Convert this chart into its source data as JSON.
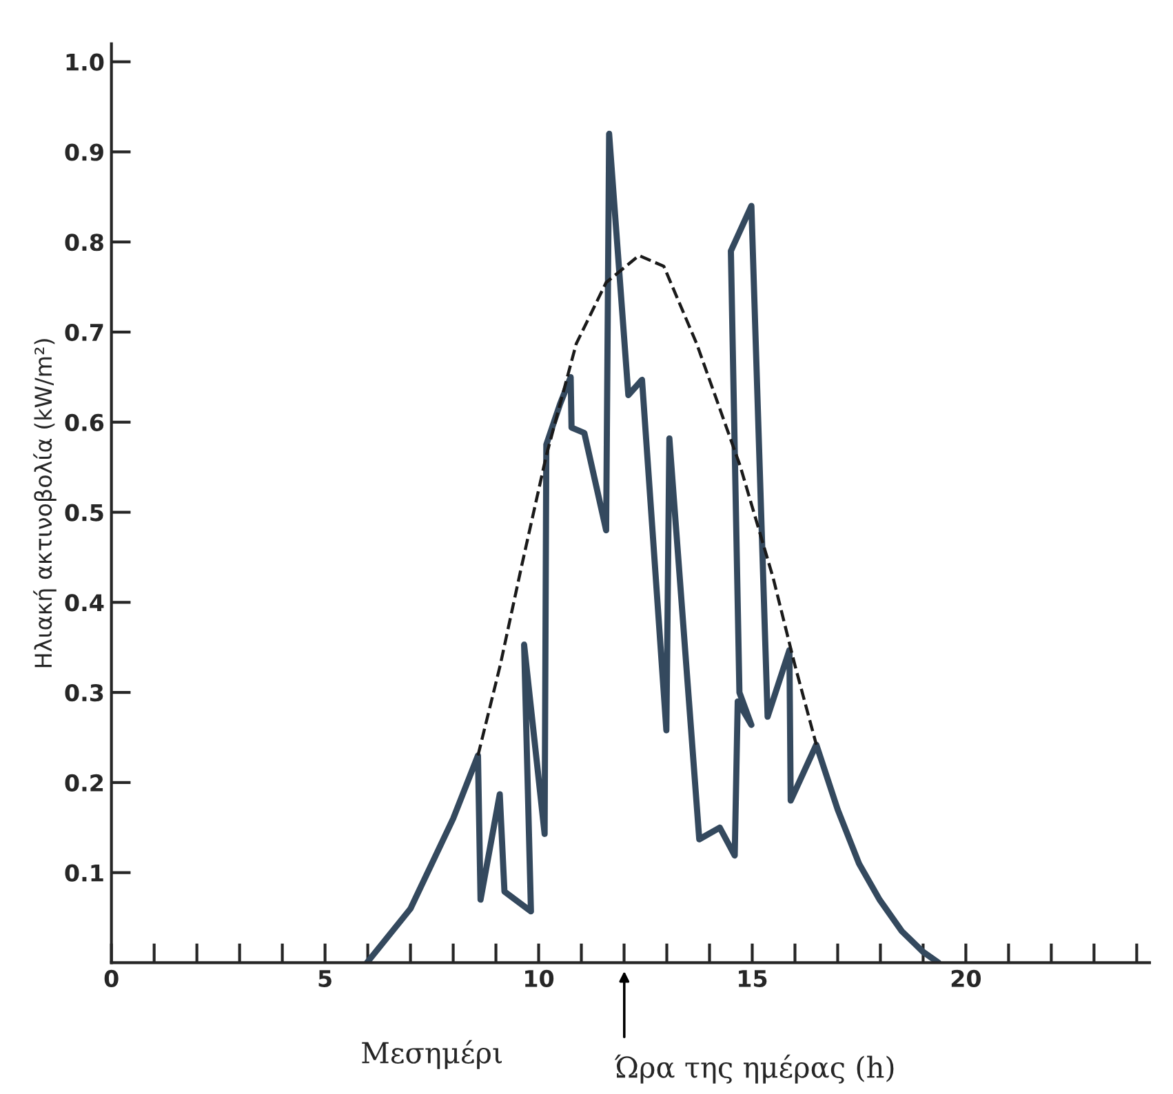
{
  "chart_data": {
    "type": "line",
    "xlabel": "Ώρα της ημέρας (h)",
    "ylabel": "Ηλιακή ακτινοβολία (kW/m²)",
    "annotations": [
      "Μεσημέρι"
    ],
    "xlim": [
      0,
      24.3
    ],
    "ylim": [
      0,
      1.02
    ],
    "xticks": [
      0,
      {
        "value": 1,
        "label": null
      },
      {
        "value": 2,
        "label": null
      },
      {
        "value": 3,
        "label": null
      },
      {
        "value": 4,
        "label": null
      },
      5,
      {
        "value": 6,
        "label": null
      },
      {
        "value": 7,
        "label": null
      },
      {
        "value": 8,
        "label": null
      },
      {
        "value": 9,
        "label": null
      },
      10,
      {
        "value": 11,
        "label": null
      },
      {
        "value": 12,
        "label": null
      },
      {
        "value": 13,
        "label": null
      },
      {
        "value": 14,
        "label": null
      },
      15,
      {
        "value": 16,
        "label": null
      },
      {
        "value": 17,
        "label": null
      },
      {
        "value": 18,
        "label": null
      },
      {
        "value": 19,
        "label": null
      },
      20,
      {
        "value": 21,
        "label": null
      },
      {
        "value": 22,
        "label": null
      },
      {
        "value": 23,
        "label": null
      },
      {
        "value": 24,
        "label": null
      }
    ],
    "yticks": [
      0.1,
      0.2,
      0.3,
      0.4,
      0.5,
      0.6,
      0.7,
      0.8,
      0.9,
      {
        "value": 1.0,
        "label": "1.0"
      }
    ],
    "grid": false,
    "legend": false,
    "marker": "none",
    "series": [
      {
        "color": "#34495e",
        "line_style": "solid",
        "x": [
          5.98,
          7.0,
          7.5,
          8.0,
          8.58,
          8.64,
          9.09,
          9.2,
          9.82,
          9.66,
          10.14,
          10.18,
          10.5,
          10.75,
          10.77,
          11.07,
          11.58,
          11.65,
          12.1,
          12.42,
          12.99,
          13.06,
          13.76,
          14.24,
          14.59,
          14.66,
          14.98,
          14.7,
          14.5,
          14.98,
          15.36,
          15.87,
          15.9,
          16.5,
          17.0,
          17.5,
          17.98,
          18.5,
          19.0,
          19.36
        ],
        "values": [
          0,
          0.06,
          0.11,
          0.16,
          0.23,
          0.07,
          0.187,
          0.079,
          0.057,
          0.353,
          0.143,
          0.575,
          0.62,
          0.65,
          0.594,
          0.588,
          0.48,
          0.92,
          0.63,
          0.647,
          0.258,
          0.582,
          0.137,
          0.15,
          0.119,
          0.29,
          0.264,
          0.3,
          0.79,
          0.84,
          0.273,
          0.347,
          0.18,
          0.242,
          0.17,
          0.11,
          0.07,
          0.035,
          0.012,
          0
        ]
      },
      {
        "color": "#1a1a1a",
        "line_style": "dashed",
        "x": [
          8.58,
          9.1,
          9.6,
          10.18,
          10.88,
          11.58,
          12.35,
          12.93,
          13.7,
          14.72,
          15.49,
          16.0,
          16.5
        ],
        "values": [
          0.23,
          0.33,
          0.44,
          0.563,
          0.687,
          0.755,
          0.785,
          0.773,
          0.687,
          0.551,
          0.427,
          0.33,
          0.242
        ]
      }
    ]
  }
}
